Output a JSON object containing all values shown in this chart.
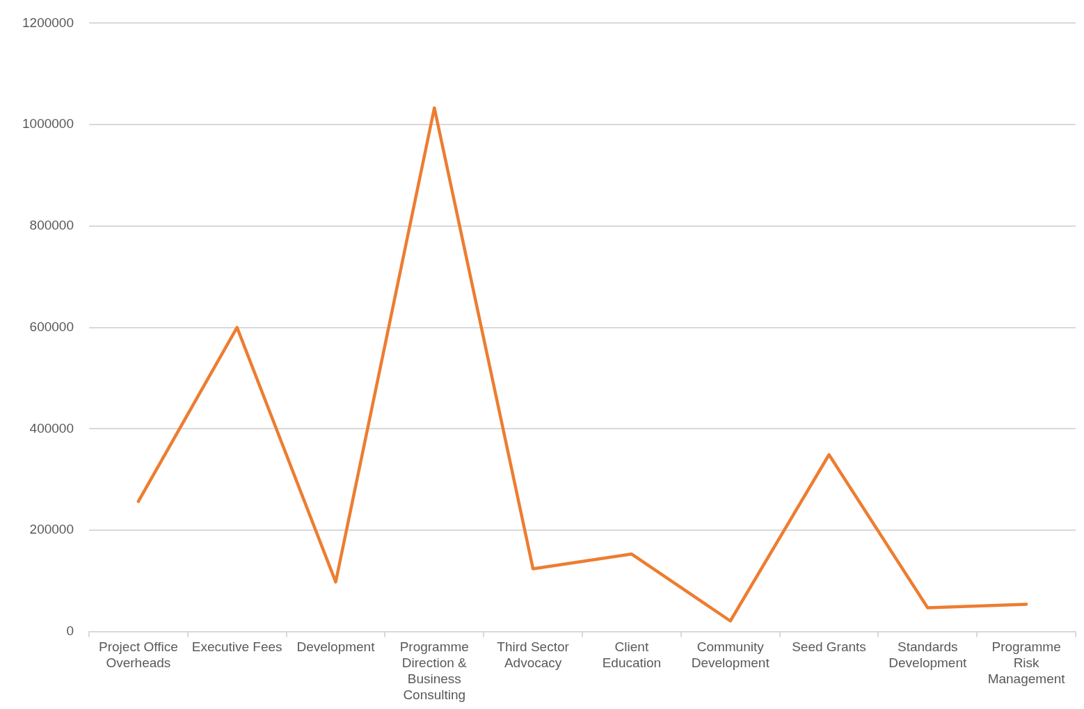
{
  "chart_data": {
    "type": "line",
    "categories": [
      "Project Office Overheads",
      "Executive Fees",
      "Development",
      "Programme Direction & Business Consulting",
      "Third Sector Advocacy",
      "Client Education",
      "Community Development",
      "Seed Grants",
      "Standards Development",
      "Programme Risk Management"
    ],
    "series": [
      {
        "color": "#ed7d31",
        "values": [
          257000,
          600000,
          98000,
          1033000,
          124000,
          153000,
          21000,
          349000,
          47000,
          54000
        ]
      }
    ],
    "ylim": [
      0,
      1200000
    ],
    "yticks": [
      0,
      200000,
      400000,
      600000,
      800000,
      1000000,
      1200000
    ],
    "grid": "y",
    "legend": false,
    "marker": "none",
    "line_style": "solid"
  }
}
